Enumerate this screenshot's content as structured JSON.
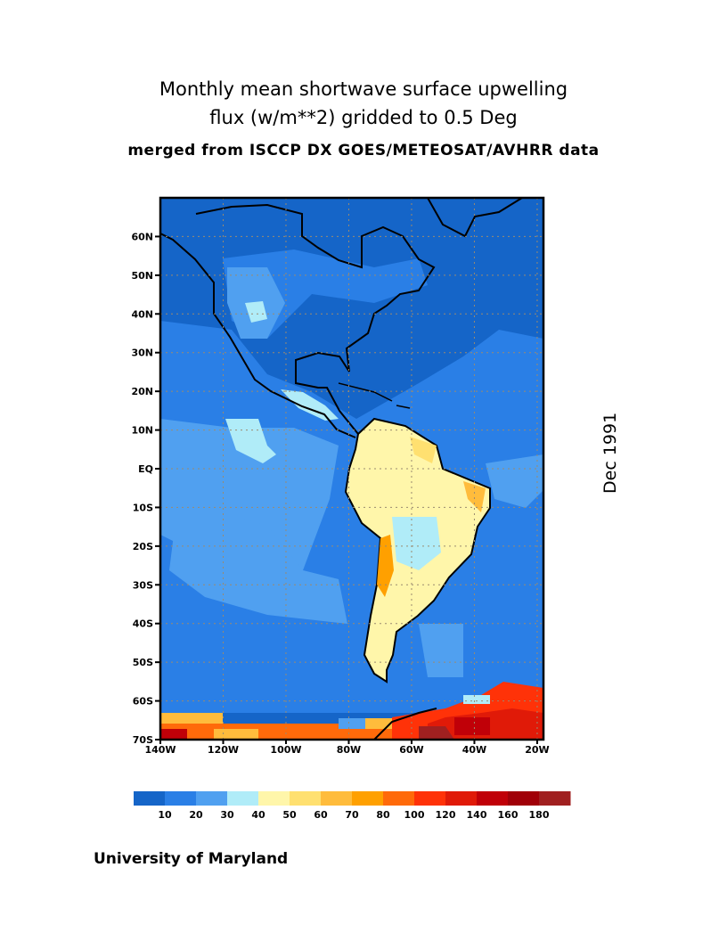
{
  "title": {
    "line1": "Monthly mean shortwave surface upwelling",
    "line2": "flux (w/m**2) gridded to 0.5 Deg",
    "line3": "merged from ISCCP DX GOES/METEOSAT/AVHRR data"
  },
  "date_label": "Dec 1991",
  "footer": "University of Maryland",
  "map": {
    "lon_range": [
      -140,
      -18
    ],
    "lat_range": [
      -70,
      70
    ],
    "lat_ticks": [
      {
        "v": 60,
        "label": "60N"
      },
      {
        "v": 50,
        "label": "50N"
      },
      {
        "v": 40,
        "label": "40N"
      },
      {
        "v": 30,
        "label": "30N"
      },
      {
        "v": 20,
        "label": "20N"
      },
      {
        "v": 10,
        "label": "10N"
      },
      {
        "v": 0,
        "label": "EQ"
      },
      {
        "v": -10,
        "label": "10S"
      },
      {
        "v": -20,
        "label": "20S"
      },
      {
        "v": -30,
        "label": "30S"
      },
      {
        "v": -40,
        "label": "40S"
      },
      {
        "v": -50,
        "label": "50S"
      },
      {
        "v": -60,
        "label": "60S"
      },
      {
        "v": -70,
        "label": "70S"
      }
    ],
    "lon_ticks": [
      {
        "v": -140,
        "label": "140W"
      },
      {
        "v": -120,
        "label": "120W"
      },
      {
        "v": -100,
        "label": "100W"
      },
      {
        "v": -80,
        "label": "80W"
      },
      {
        "v": -60,
        "label": "60W"
      },
      {
        "v": -40,
        "label": "40W"
      },
      {
        "v": -20,
        "label": "20W"
      }
    ]
  },
  "colorbar": {
    "colors": [
      "#1565c8",
      "#2a7fe6",
      "#50a0f0",
      "#b0ecf8",
      "#fff6aa",
      "#ffe070",
      "#ffbc3c",
      "#ffa000",
      "#ff6a0a",
      "#ff3208",
      "#e01a08",
      "#c00008",
      "#a00008",
      "#a02020"
    ],
    "labels": [
      "10",
      "20",
      "30",
      "40",
      "50",
      "60",
      "70",
      "80",
      "100",
      "120",
      "140",
      "160",
      "180"
    ]
  }
}
